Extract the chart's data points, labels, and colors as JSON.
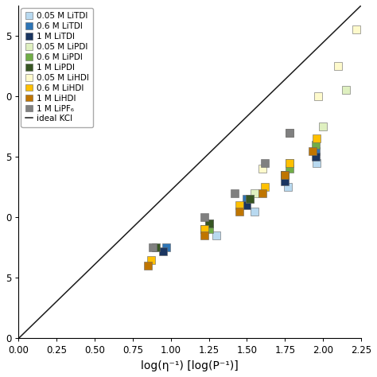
{
  "series": [
    {
      "label": "0.05 M LiTDI",
      "color": "#b8d9f0",
      "x": [
        1.3,
        1.55,
        1.77,
        1.96
      ],
      "y": [
        8.5,
        10.5,
        12.5,
        14.5
      ]
    },
    {
      "label": "0.6 M LiTDI",
      "color": "#2e75b6",
      "x": [
        0.97,
        1.25,
        1.5,
        1.75,
        1.95
      ],
      "y": [
        7.5,
        9.5,
        11.5,
        13.5,
        15.5
      ]
    },
    {
      "label": "1 M LiTDI",
      "color": "#1a3560",
      "x": [
        0.95,
        1.22,
        1.5,
        1.75,
        1.95
      ],
      "y": [
        7.2,
        9.0,
        11.0,
        13.0,
        15.0
      ]
    },
    {
      "label": "0.05 M LiPDI",
      "color": "#dff0c0",
      "x": [
        1.25,
        1.55,
        1.78,
        2.0,
        2.15
      ],
      "y": [
        9.5,
        12.0,
        14.5,
        17.5,
        20.5
      ]
    },
    {
      "label": "0.6 M LiPDI",
      "color": "#70ad47",
      "x": [
        1.25,
        1.52,
        1.78,
        1.95
      ],
      "y": [
        9.0,
        11.5,
        14.0,
        16.0
      ]
    },
    {
      "label": "1 M LiPDI",
      "color": "#375623",
      "x": [
        0.9,
        1.25,
        1.52,
        1.75
      ],
      "y": [
        7.5,
        9.5,
        11.5,
        13.5
      ]
    },
    {
      "label": "0.05 M LiHDI",
      "color": "#fefacc",
      "x": [
        1.6,
        1.78,
        1.97,
        2.1,
        2.22
      ],
      "y": [
        14.0,
        17.0,
        20.0,
        22.5,
        25.5
      ]
    },
    {
      "label": "0.6 M LiHDI",
      "color": "#ffc000",
      "x": [
        0.87,
        1.22,
        1.45,
        1.62,
        1.78,
        1.96
      ],
      "y": [
        6.5,
        9.0,
        11.0,
        12.5,
        14.5,
        16.5
      ]
    },
    {
      "label": "1 M LiHDI",
      "color": "#bf7500",
      "x": [
        0.85,
        1.22,
        1.45,
        1.6,
        1.75,
        1.93
      ],
      "y": [
        6.0,
        8.5,
        10.5,
        12.0,
        13.5,
        15.5
      ]
    },
    {
      "label": "1 M LiPF₆",
      "color": "#808080",
      "x": [
        0.88,
        1.22,
        1.42,
        1.62,
        1.78
      ],
      "y": [
        7.5,
        10.0,
        12.0,
        14.5,
        17.0
      ]
    }
  ],
  "ideal_line_color": "#1a1a1a",
  "ideal_line_label": "ideal KCl",
  "xlabel": "log(η⁻¹) [log(P⁻¹)]",
  "xlim": [
    0.0,
    2.25
  ],
  "ylim": [
    0.0,
    27.5
  ],
  "xticks": [
    0.0,
    0.25,
    0.5,
    0.75,
    1.0,
    1.25,
    1.5,
    1.75,
    2.0,
    2.25
  ],
  "yticks": [
    0,
    5,
    10,
    15,
    20,
    25
  ],
  "ytick_labels": [
    "0",
    "5",
    "0",
    "5",
    "0",
    "5"
  ],
  "marker_size": 52,
  "legend_fontsize": 7.5
}
